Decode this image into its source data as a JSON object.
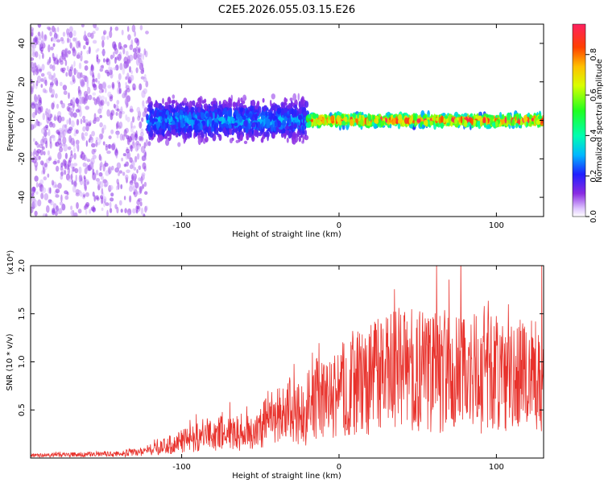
{
  "figure": {
    "title": "C2E5.2026.055.03.15.E26"
  },
  "chart_data": [
    {
      "type": "heatmap",
      "name": "spectrogram",
      "title": "C2E5.2026.055.03.15.E26",
      "xlabel": "Height of straight line (km)",
      "ylabel": "Frequency (Hz)",
      "xlim": [
        -196,
        130
      ],
      "ylim": [
        -50,
        50
      ],
      "xticks": [
        -100,
        0,
        100
      ],
      "xtick_labels": [
        "-100",
        "0",
        "100"
      ],
      "yticks": [
        -40,
        -20,
        0,
        20,
        40
      ],
      "ytick_labels": [
        "-40",
        "-20",
        "0",
        "20",
        "40"
      ],
      "description_of_content": [
        {
          "x_range": [
            -196,
            -122
          ],
          "freq_range": [
            -50,
            50
          ],
          "amplitude": 0.1,
          "pattern": "scattered noise"
        },
        {
          "x_range": [
            -122,
            -20
          ],
          "freq_center": 0,
          "freq_halfwidth": 10,
          "amplitude": 0.25,
          "pattern": "broad band"
        },
        {
          "x_range": [
            -20,
            130
          ],
          "freq_center": 0,
          "freq_halfwidth": 3,
          "amplitude": 0.75,
          "pattern": "narrow signal line"
        }
      ],
      "colorbar": {
        "label": "Normalized spectral amplitude",
        "range": [
          0,
          0.95
        ],
        "ticks": [
          0.0,
          0.2,
          0.4,
          0.6,
          0.8
        ],
        "tick_labels": [
          "0.0",
          "0.2",
          "0.4",
          "0.6",
          "0.8"
        ]
      }
    },
    {
      "type": "line",
      "name": "snr",
      "xlabel": "Height of straight line (km)",
      "ylabel": "SNR (10 * v/v)",
      "exponent_label": "(x10⁴)",
      "xlim": [
        -196,
        130
      ],
      "ylim": [
        0,
        2.0
      ],
      "xticks": [
        -100,
        0,
        100
      ],
      "xtick_labels": [
        "-100",
        "0",
        "100"
      ],
      "yticks": [
        0.5,
        1.0,
        1.5,
        2.0
      ],
      "ytick_labels": [
        "0.5",
        "1.0",
        "1.5",
        "2.0"
      ],
      "color": "#e8322c",
      "series": [
        {
          "name": "SNR envelope",
          "x": [
            -196,
            -170,
            -140,
            -125,
            -115,
            -100,
            -85,
            -70,
            -55,
            -45,
            -35,
            -28,
            -22,
            -15,
            -8,
            0,
            10,
            20,
            28,
            40,
            55,
            70,
            85,
            100,
            115,
            130
          ],
          "values": [
            0.03,
            0.04,
            0.05,
            0.08,
            0.12,
            0.2,
            0.28,
            0.3,
            0.3,
            0.45,
            0.55,
            0.6,
            0.45,
            0.7,
            0.65,
            0.8,
            0.85,
            0.95,
            1.0,
            1.05,
            1.02,
            1.05,
            1.0,
            1.0,
            1.02,
            1.05
          ]
        }
      ]
    }
  ]
}
